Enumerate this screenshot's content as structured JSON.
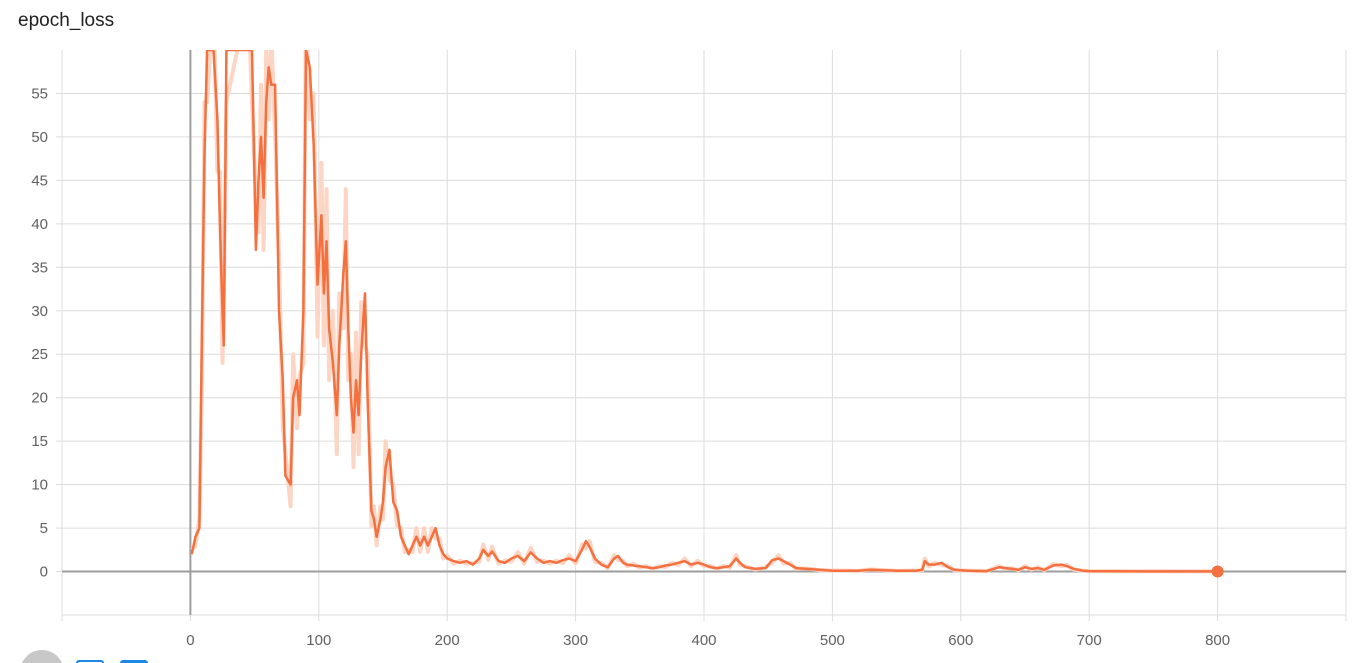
{
  "card": {
    "title": "epoch_loss"
  },
  "colors": {
    "series": "#f4703f",
    "raw": "#fcd5c4",
    "grid": "#dcdcdc",
    "axis": "#9e9e9e",
    "accent": "#1e88e5"
  },
  "chart_data": {
    "type": "line",
    "title": "epoch_loss",
    "xlabel": "",
    "ylabel": "",
    "xlim": [
      -100,
      900
    ],
    "ylim": [
      -5,
      60
    ],
    "xticks": [
      0,
      100,
      200,
      300,
      400,
      500,
      600,
      700,
      800
    ],
    "yticks": [
      0,
      5,
      10,
      15,
      20,
      25,
      30,
      35,
      40,
      45,
      50,
      55
    ],
    "grid": true,
    "series": [
      {
        "role": "smoothed",
        "points": [
          [
            1,
            2
          ],
          [
            4,
            4
          ],
          [
            7,
            5
          ],
          [
            9,
            28
          ],
          [
            11,
            48
          ],
          [
            13,
            60
          ],
          [
            18,
            60
          ],
          [
            21,
            52
          ],
          [
            23,
            40
          ],
          [
            25,
            30
          ],
          [
            26,
            26
          ],
          [
            28,
            60
          ],
          [
            45,
            60
          ],
          [
            48,
            60
          ],
          [
            51,
            37
          ],
          [
            53,
            45
          ],
          [
            55,
            50
          ],
          [
            57,
            43
          ],
          [
            59,
            54
          ],
          [
            61,
            58
          ],
          [
            63,
            56
          ],
          [
            66,
            56
          ],
          [
            69,
            30
          ],
          [
            72,
            22
          ],
          [
            74,
            11
          ],
          [
            78,
            10
          ],
          [
            80,
            20
          ],
          [
            83,
            22
          ],
          [
            85,
            18
          ],
          [
            88,
            30
          ],
          [
            90,
            60
          ],
          [
            93,
            58
          ],
          [
            96,
            49
          ],
          [
            99,
            33
          ],
          [
            102,
            41
          ],
          [
            104,
            32
          ],
          [
            106,
            38
          ],
          [
            108,
            28
          ],
          [
            111,
            24
          ],
          [
            114,
            18
          ],
          [
            116,
            26
          ],
          [
            119,
            34
          ],
          [
            121,
            38
          ],
          [
            123,
            28
          ],
          [
            125,
            20
          ],
          [
            127,
            16
          ],
          [
            129,
            22
          ],
          [
            131,
            18
          ],
          [
            133,
            25
          ],
          [
            136,
            32
          ],
          [
            138,
            20
          ],
          [
            141,
            7
          ],
          [
            143,
            6
          ],
          [
            145,
            4
          ],
          [
            148,
            6
          ],
          [
            150,
            8
          ],
          [
            152,
            12
          ],
          [
            155,
            14
          ],
          [
            158,
            8
          ],
          [
            161,
            7
          ],
          [
            164,
            4
          ],
          [
            167,
            3
          ],
          [
            170,
            2
          ],
          [
            173,
            3
          ],
          [
            176,
            4
          ],
          [
            179,
            3
          ],
          [
            182,
            4
          ],
          [
            185,
            3
          ],
          [
            188,
            4
          ],
          [
            191,
            5
          ],
          [
            194,
            3
          ],
          [
            197,
            2
          ],
          [
            200,
            1.5
          ],
          [
            205,
            1.2
          ],
          [
            210,
            1
          ],
          [
            215,
            1.2
          ],
          [
            220,
            0.8
          ],
          [
            225,
            1.5
          ],
          [
            228,
            2.5
          ],
          [
            232,
            1.8
          ],
          [
            235,
            2.3
          ],
          [
            240,
            1.2
          ],
          [
            245,
            1
          ],
          [
            250,
            1.5
          ],
          [
            255,
            1.8
          ],
          [
            260,
            1.2
          ],
          [
            265,
            2.2
          ],
          [
            270,
            1.5
          ],
          [
            275,
            1
          ],
          [
            280,
            1.2
          ],
          [
            285,
            1
          ],
          [
            290,
            1.3
          ],
          [
            295,
            1.5
          ],
          [
            300,
            1.2
          ],
          [
            305,
            2.5
          ],
          [
            308,
            3.5
          ],
          [
            311,
            2.8
          ],
          [
            315,
            1.5
          ],
          [
            320,
            0.8
          ],
          [
            325,
            0.5
          ],
          [
            330,
            1.5
          ],
          [
            333,
            1.8
          ],
          [
            337,
            1
          ],
          [
            340,
            0.8
          ],
          [
            345,
            0.7
          ],
          [
            350,
            0.6
          ],
          [
            355,
            0.5
          ],
          [
            360,
            0.4
          ],
          [
            365,
            0.5
          ],
          [
            370,
            0.7
          ],
          [
            375,
            0.8
          ],
          [
            380,
            1
          ],
          [
            385,
            1.2
          ],
          [
            390,
            0.8
          ],
          [
            395,
            1
          ],
          [
            400,
            0.8
          ],
          [
            405,
            0.5
          ],
          [
            410,
            0.4
          ],
          [
            415,
            0.5
          ],
          [
            420,
            0.6
          ],
          [
            425,
            1.5
          ],
          [
            428,
            1
          ],
          [
            432,
            0.5
          ],
          [
            440,
            0.3
          ],
          [
            448,
            0.4
          ],
          [
            453,
            1.3
          ],
          [
            458,
            1.5
          ],
          [
            462,
            1.2
          ],
          [
            467,
            0.8
          ],
          [
            472,
            0.4
          ],
          [
            480,
            0.3
          ],
          [
            490,
            0.2
          ],
          [
            500,
            0.1
          ],
          [
            520,
            0.1
          ],
          [
            530,
            0.2
          ],
          [
            550,
            0.1
          ],
          [
            565,
            0.1
          ],
          [
            570,
            0.2
          ],
          [
            572,
            1.2
          ],
          [
            575,
            0.8
          ],
          [
            580,
            0.8
          ],
          [
            585,
            1
          ],
          [
            590,
            0.5
          ],
          [
            595,
            0.2
          ],
          [
            605,
            0.1
          ],
          [
            620,
            0.05
          ],
          [
            630,
            0.5
          ],
          [
            635,
            0.4
          ],
          [
            640,
            0.3
          ],
          [
            645,
            0.2
          ],
          [
            650,
            0.5
          ],
          [
            655,
            0.3
          ],
          [
            660,
            0.4
          ],
          [
            665,
            0.2
          ],
          [
            672,
            0.7
          ],
          [
            678,
            0.8
          ],
          [
            683,
            0.6
          ],
          [
            688,
            0.3
          ],
          [
            695,
            0.1
          ],
          [
            700,
            0.05
          ],
          [
            750,
            0.02
          ],
          [
            800,
            0.02
          ]
        ]
      }
    ],
    "last_point": [
      800,
      0
    ]
  }
}
